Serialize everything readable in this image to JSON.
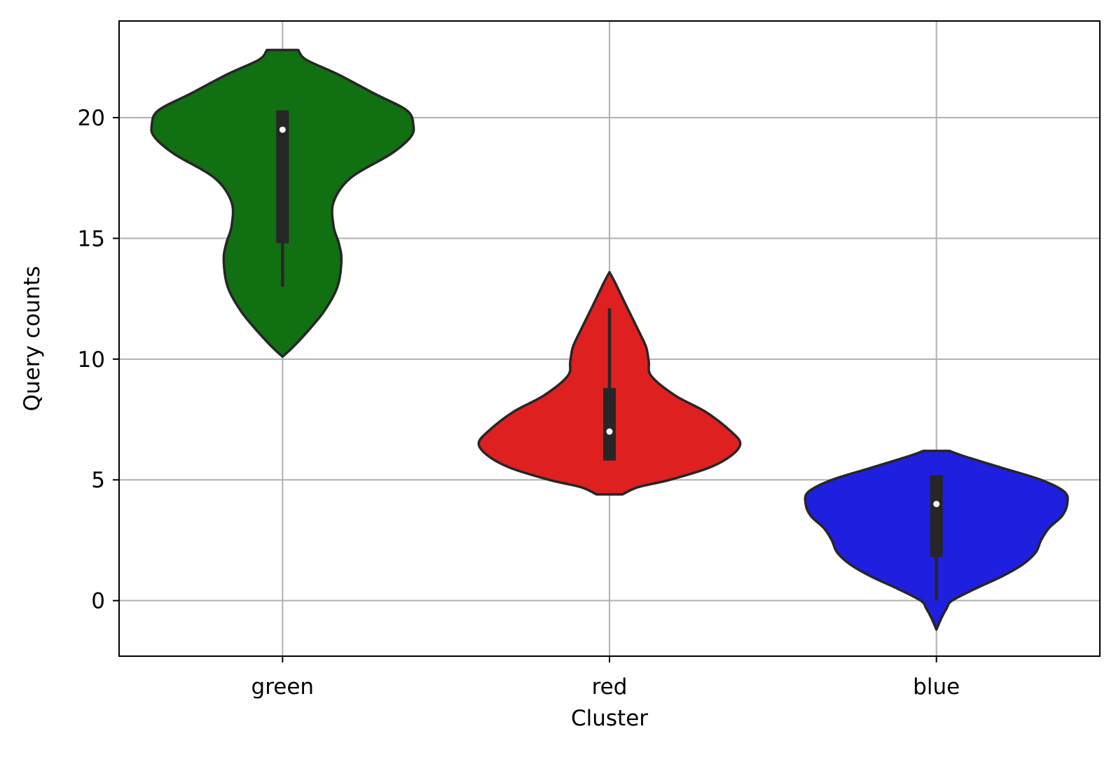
{
  "chart_data": {
    "type": "violin",
    "xlabel": "Cluster",
    "ylabel": "Query counts",
    "categories": [
      "green",
      "red",
      "blue"
    ],
    "ylim": [
      -2.3,
      24
    ],
    "yticks": [
      0,
      5,
      10,
      15,
      20
    ],
    "grid": true,
    "violins": [
      {
        "category": "green",
        "color": "#117011",
        "density": [
          [
            10.1,
            0.0
          ],
          [
            10.5,
            0.08
          ],
          [
            11.2,
            0.2
          ],
          [
            12.0,
            0.32
          ],
          [
            13.0,
            0.42
          ],
          [
            14.1,
            0.45
          ],
          [
            14.8,
            0.43
          ],
          [
            15.5,
            0.39
          ],
          [
            16.5,
            0.39
          ],
          [
            17.5,
            0.52
          ],
          [
            18.5,
            0.83
          ],
          [
            19.2,
            0.98
          ],
          [
            19.7,
            1.0
          ],
          [
            20.3,
            0.95
          ],
          [
            21.0,
            0.7
          ],
          [
            21.8,
            0.42
          ],
          [
            22.4,
            0.18
          ],
          [
            22.8,
            0.12
          ]
        ],
        "quartile_low": 14.8,
        "quartile_high": 20.3,
        "whisker_low": 13.0,
        "whisker_high": 20.3,
        "median": 19.5
      },
      {
        "category": "red",
        "color": "#df2020",
        "density": [
          [
            4.4,
            0.1
          ],
          [
            4.7,
            0.22
          ],
          [
            5.0,
            0.46
          ],
          [
            5.5,
            0.76
          ],
          [
            6.0,
            0.93
          ],
          [
            6.5,
            1.0
          ],
          [
            7.0,
            0.93
          ],
          [
            7.8,
            0.74
          ],
          [
            8.5,
            0.5
          ],
          [
            9.3,
            0.32
          ],
          [
            9.9,
            0.3
          ],
          [
            10.5,
            0.28
          ],
          [
            11.2,
            0.22
          ],
          [
            12.3,
            0.12
          ],
          [
            13.2,
            0.04
          ],
          [
            13.6,
            0.0
          ]
        ],
        "quartile_low": 5.8,
        "quartile_high": 8.8,
        "whisker_low": 5.8,
        "whisker_high": 12.1,
        "median": 7.0
      },
      {
        "category": "blue",
        "color": "#1f1fe0",
        "density": [
          [
            -1.2,
            0.0
          ],
          [
            -0.7,
            0.04
          ],
          [
            -0.3,
            0.08
          ],
          [
            0.0,
            0.12
          ],
          [
            0.5,
            0.3
          ],
          [
            1.0,
            0.5
          ],
          [
            1.5,
            0.66
          ],
          [
            2.0,
            0.76
          ],
          [
            2.5,
            0.8
          ],
          [
            3.0,
            0.86
          ],
          [
            3.5,
            0.96
          ],
          [
            4.0,
            1.0
          ],
          [
            4.5,
            0.98
          ],
          [
            5.0,
            0.8
          ],
          [
            5.5,
            0.5
          ],
          [
            6.0,
            0.2
          ],
          [
            6.2,
            0.1
          ]
        ],
        "quartile_low": 1.8,
        "quartile_high": 5.2,
        "whisker_low": 0.0,
        "whisker_high": 5.2,
        "median": 4.0
      }
    ]
  }
}
